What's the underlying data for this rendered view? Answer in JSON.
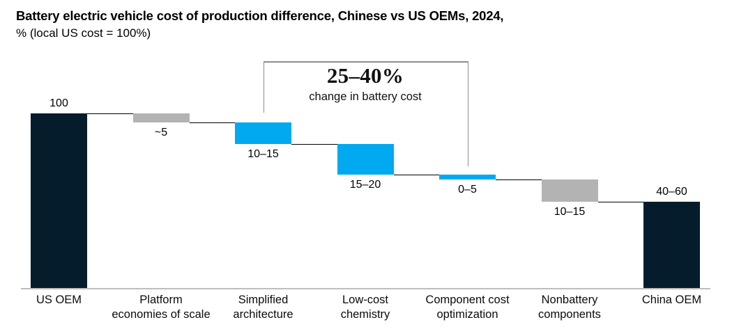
{
  "chart_data": {
    "type": "bar",
    "variant": "waterfall",
    "title": "Battery electric vehicle cost of production difference, Chinese vs US OEMs, 2024,",
    "subtitle": "% (local US cost = 100%)",
    "ylim": [
      0,
      100
    ],
    "grid": false,
    "y_axis_visible": false,
    "legend": null,
    "categories": [
      "US OEM",
      "Platform economies of scale",
      "Simplified architecture",
      "Low-cost chemistry",
      "Component cost optimization",
      "Nonbattery components",
      "China OEM"
    ],
    "items": [
      {
        "category": "US OEM",
        "label_lines": [
          "US OEM"
        ],
        "role": "total",
        "value_label": "100",
        "start": 0,
        "end": 100,
        "color": "navy",
        "value_label_position": "above"
      },
      {
        "category": "Platform economies of scale",
        "label_lines": [
          "Platform",
          "economies of scale"
        ],
        "role": "decrease",
        "value_label": "~5",
        "start": 100,
        "end": 94.7,
        "color": "gray",
        "value_label_position": "below"
      },
      {
        "category": "Simplified architecture",
        "label_lines": [
          "Simplified",
          "architecture"
        ],
        "role": "decrease",
        "value_label": "10–15",
        "start": 94.7,
        "end": 82.3,
        "color": "cyan",
        "value_label_position": "below"
      },
      {
        "category": "Low-cost chemistry",
        "label_lines": [
          "Low-cost",
          "chemistry"
        ],
        "role": "decrease",
        "value_label": "15–20",
        "start": 82.3,
        "end": 64.8,
        "color": "cyan",
        "value_label_position": "below"
      },
      {
        "category": "Component cost optimization",
        "label_lines": [
          "Component cost",
          "optimization"
        ],
        "role": "decrease",
        "value_label": "0–5",
        "start": 64.8,
        "end": 62.3,
        "color": "cyan",
        "value_label_position": "below"
      },
      {
        "category": "Nonbattery components",
        "label_lines": [
          "Nonbattery",
          "components"
        ],
        "role": "decrease",
        "value_label": "10–15",
        "start": 62.3,
        "end": 49.6,
        "color": "gray",
        "value_label_position": "below"
      },
      {
        "category": "China OEM",
        "label_lines": [
          "China OEM"
        ],
        "role": "total",
        "value_label": "40–60",
        "start": 0,
        "end": 49.6,
        "color": "navy",
        "value_label_position": "above"
      }
    ],
    "annotation": {
      "headline": "25–40%",
      "caption": "change in battery cost",
      "bracket_from_category": "Simplified architecture",
      "bracket_to_category": "Component cost optimization",
      "bracket_from_index": 2,
      "bracket_to_index": 4
    },
    "colors": {
      "navy": "#051c2c",
      "cyan": "#00a9f0",
      "gray": "#b3b3b3",
      "connector": "#000000",
      "axis_line": "#bdbdbd",
      "bracket": "#8c8c8c"
    }
  }
}
